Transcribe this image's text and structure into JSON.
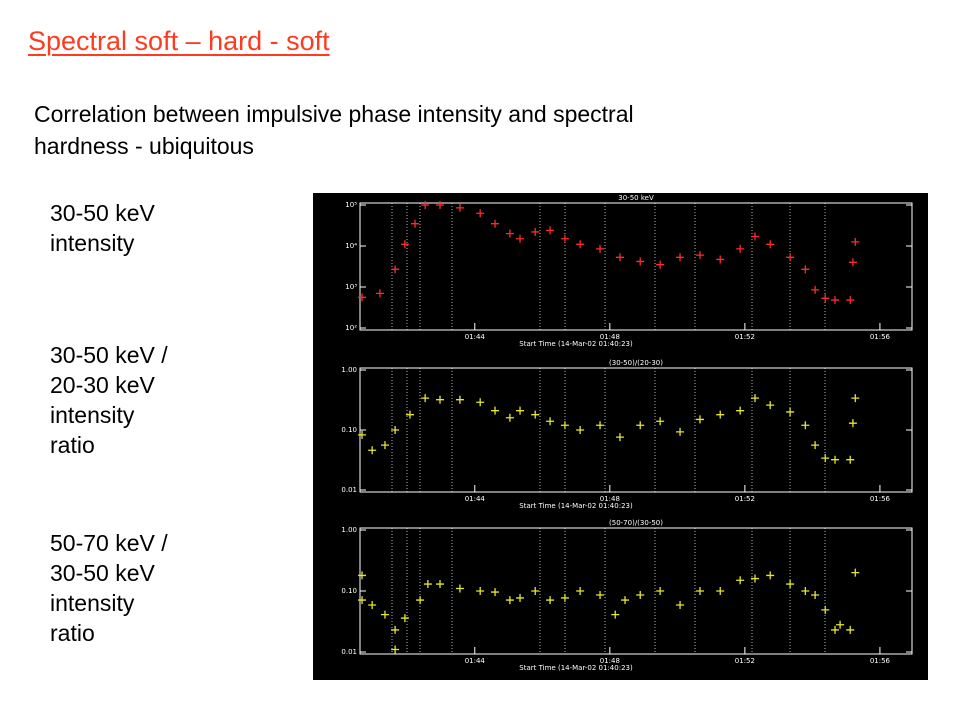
{
  "slide": {
    "title": "Spectral soft – hard  - soft",
    "subtitle_lines": [
      "Correlation between impulsive phase intensity and spectral",
      "hardness - ubiquitous"
    ],
    "labels": [
      [
        "30-50 keV",
        "intensity"
      ],
      [
        "30-50 keV /",
        "20-30 keV",
        "intensity",
        "ratio"
      ],
      [
        "50-70 keV /",
        "30-50 keV",
        "intensity",
        "ratio"
      ]
    ]
  },
  "chart_data": [
    {
      "type": "scatter",
      "title": "30-50 keV",
      "x_label": "Start Time (14-Mar-02 01:40:23)",
      "log_y": true,
      "color": "#ff2a2a",
      "x": [
        100.66,
        101.19,
        101.64,
        101.93,
        102.23,
        102.53,
        102.97,
        103.56,
        104.16,
        104.6,
        105.04,
        105.34,
        105.79,
        106.23,
        106.67,
        107.12,
        107.71,
        108.3,
        108.9,
        109.49,
        110.08,
        110.67,
        111.27,
        111.86,
        112.3,
        112.75,
        113.34,
        113.79,
        114.08,
        114.38,
        114.67,
        115.12,
        115.27,
        115.2
      ],
      "values": [
        560,
        700,
        2700,
        11000,
        35000,
        100000,
        100000,
        85000,
        63000,
        35000,
        20000,
        15000,
        22000,
        24000,
        15000,
        11000,
        8500,
        5300,
        4200,
        3500,
        5300,
        6000,
        4700,
        8500,
        17000,
        11000,
        5300,
        2700,
        850,
        530,
        480,
        480,
        12600,
        4000
      ],
      "xlim": [
        100.6,
        116.95
      ],
      "xticks": [
        {
          "value": 104,
          "label": "01:44"
        },
        {
          "value": 108,
          "label": "01:48"
        },
        {
          "value": 112,
          "label": "01:52"
        },
        {
          "value": 116,
          "label": "01:56"
        }
      ],
      "ylim": [
        100,
        100000
      ],
      "yticks": [
        {
          "value": 100,
          "label": "10²"
        },
        {
          "value": 1000,
          "label": "10³"
        },
        {
          "value": 10000,
          "label": "10⁴"
        },
        {
          "value": 100000,
          "label": "10⁵"
        }
      ]
    },
    {
      "type": "scatter",
      "title": "(30-50)/(20-30)",
      "x_label": "Start Time (14-Mar-02 01:40:23)",
      "log_y": true,
      "color": "#e6e62e",
      "x": [
        100.66,
        100.96,
        101.34,
        101.64,
        102.08,
        102.53,
        102.97,
        103.56,
        104.16,
        104.6,
        105.04,
        105.34,
        105.79,
        106.23,
        106.67,
        107.12,
        107.71,
        108.3,
        108.9,
        109.49,
        110.08,
        110.67,
        111.27,
        111.86,
        112.3,
        112.75,
        113.34,
        113.79,
        114.08,
        114.38,
        114.67,
        115.12,
        115.27,
        115.2
      ],
      "values": [
        0.083,
        0.046,
        0.056,
        0.1,
        0.18,
        0.34,
        0.32,
        0.32,
        0.29,
        0.21,
        0.16,
        0.21,
        0.18,
        0.14,
        0.12,
        0.1,
        0.12,
        0.076,
        0.12,
        0.14,
        0.093,
        0.15,
        0.18,
        0.21,
        0.34,
        0.26,
        0.2,
        0.12,
        0.056,
        0.034,
        0.032,
        0.032,
        0.34,
        0.13
      ],
      "xlim": [
        100.6,
        116.95
      ],
      "xticks": [
        {
          "value": 104,
          "label": "01:44"
        },
        {
          "value": 108,
          "label": "01:48"
        },
        {
          "value": 112,
          "label": "01:52"
        },
        {
          "value": 116,
          "label": "01:56"
        }
      ],
      "ylim": [
        0.01,
        1
      ],
      "yticks": [
        {
          "value": 0.01,
          "label": "0.01"
        },
        {
          "value": 0.1,
          "label": "0.10"
        },
        {
          "value": 1,
          "label": "1.00"
        }
      ]
    },
    {
      "type": "scatter",
      "title": "(50-70)/(30-50)",
      "x_label": "Start Time (14-Mar-02 01:40:23)",
      "log_y": true,
      "color": "#e6e62e",
      "x": [
        100.66,
        100.96,
        101.34,
        101.64,
        101.93,
        102.38,
        102.61,
        102.97,
        103.56,
        104.16,
        104.6,
        105.04,
        105.34,
        105.79,
        106.23,
        106.67,
        107.12,
        107.71,
        108.16,
        108.45,
        108.9,
        109.49,
        110.08,
        110.67,
        111.27,
        111.86,
        112.3,
        112.75,
        113.34,
        113.79,
        114.08,
        114.38,
        114.67,
        115.12,
        100.66,
        101.64,
        115.27,
        114.82
      ],
      "values": [
        0.071,
        0.059,
        0.041,
        0.023,
        0.036,
        0.071,
        0.13,
        0.13,
        0.11,
        0.1,
        0.096,
        0.071,
        0.077,
        0.1,
        0.071,
        0.077,
        0.1,
        0.086,
        0.041,
        0.071,
        0.086,
        0.1,
        0.059,
        0.1,
        0.1,
        0.15,
        0.16,
        0.18,
        0.13,
        0.1,
        0.086,
        0.049,
        0.023,
        0.023,
        0.18,
        0.011,
        0.2,
        0.028
      ],
      "xlim": [
        100.6,
        116.95
      ],
      "xticks": [
        {
          "value": 104,
          "label": "01:44"
        },
        {
          "value": 108,
          "label": "01:48"
        },
        {
          "value": 112,
          "label": "01:52"
        },
        {
          "value": 116,
          "label": "01:56"
        }
      ],
      "ylim": [
        0.01,
        1
      ],
      "yticks": [
        {
          "value": 0.01,
          "label": "0.01"
        },
        {
          "value": 0.1,
          "label": "0.10"
        },
        {
          "value": 1,
          "label": "1.00"
        }
      ]
    }
  ]
}
